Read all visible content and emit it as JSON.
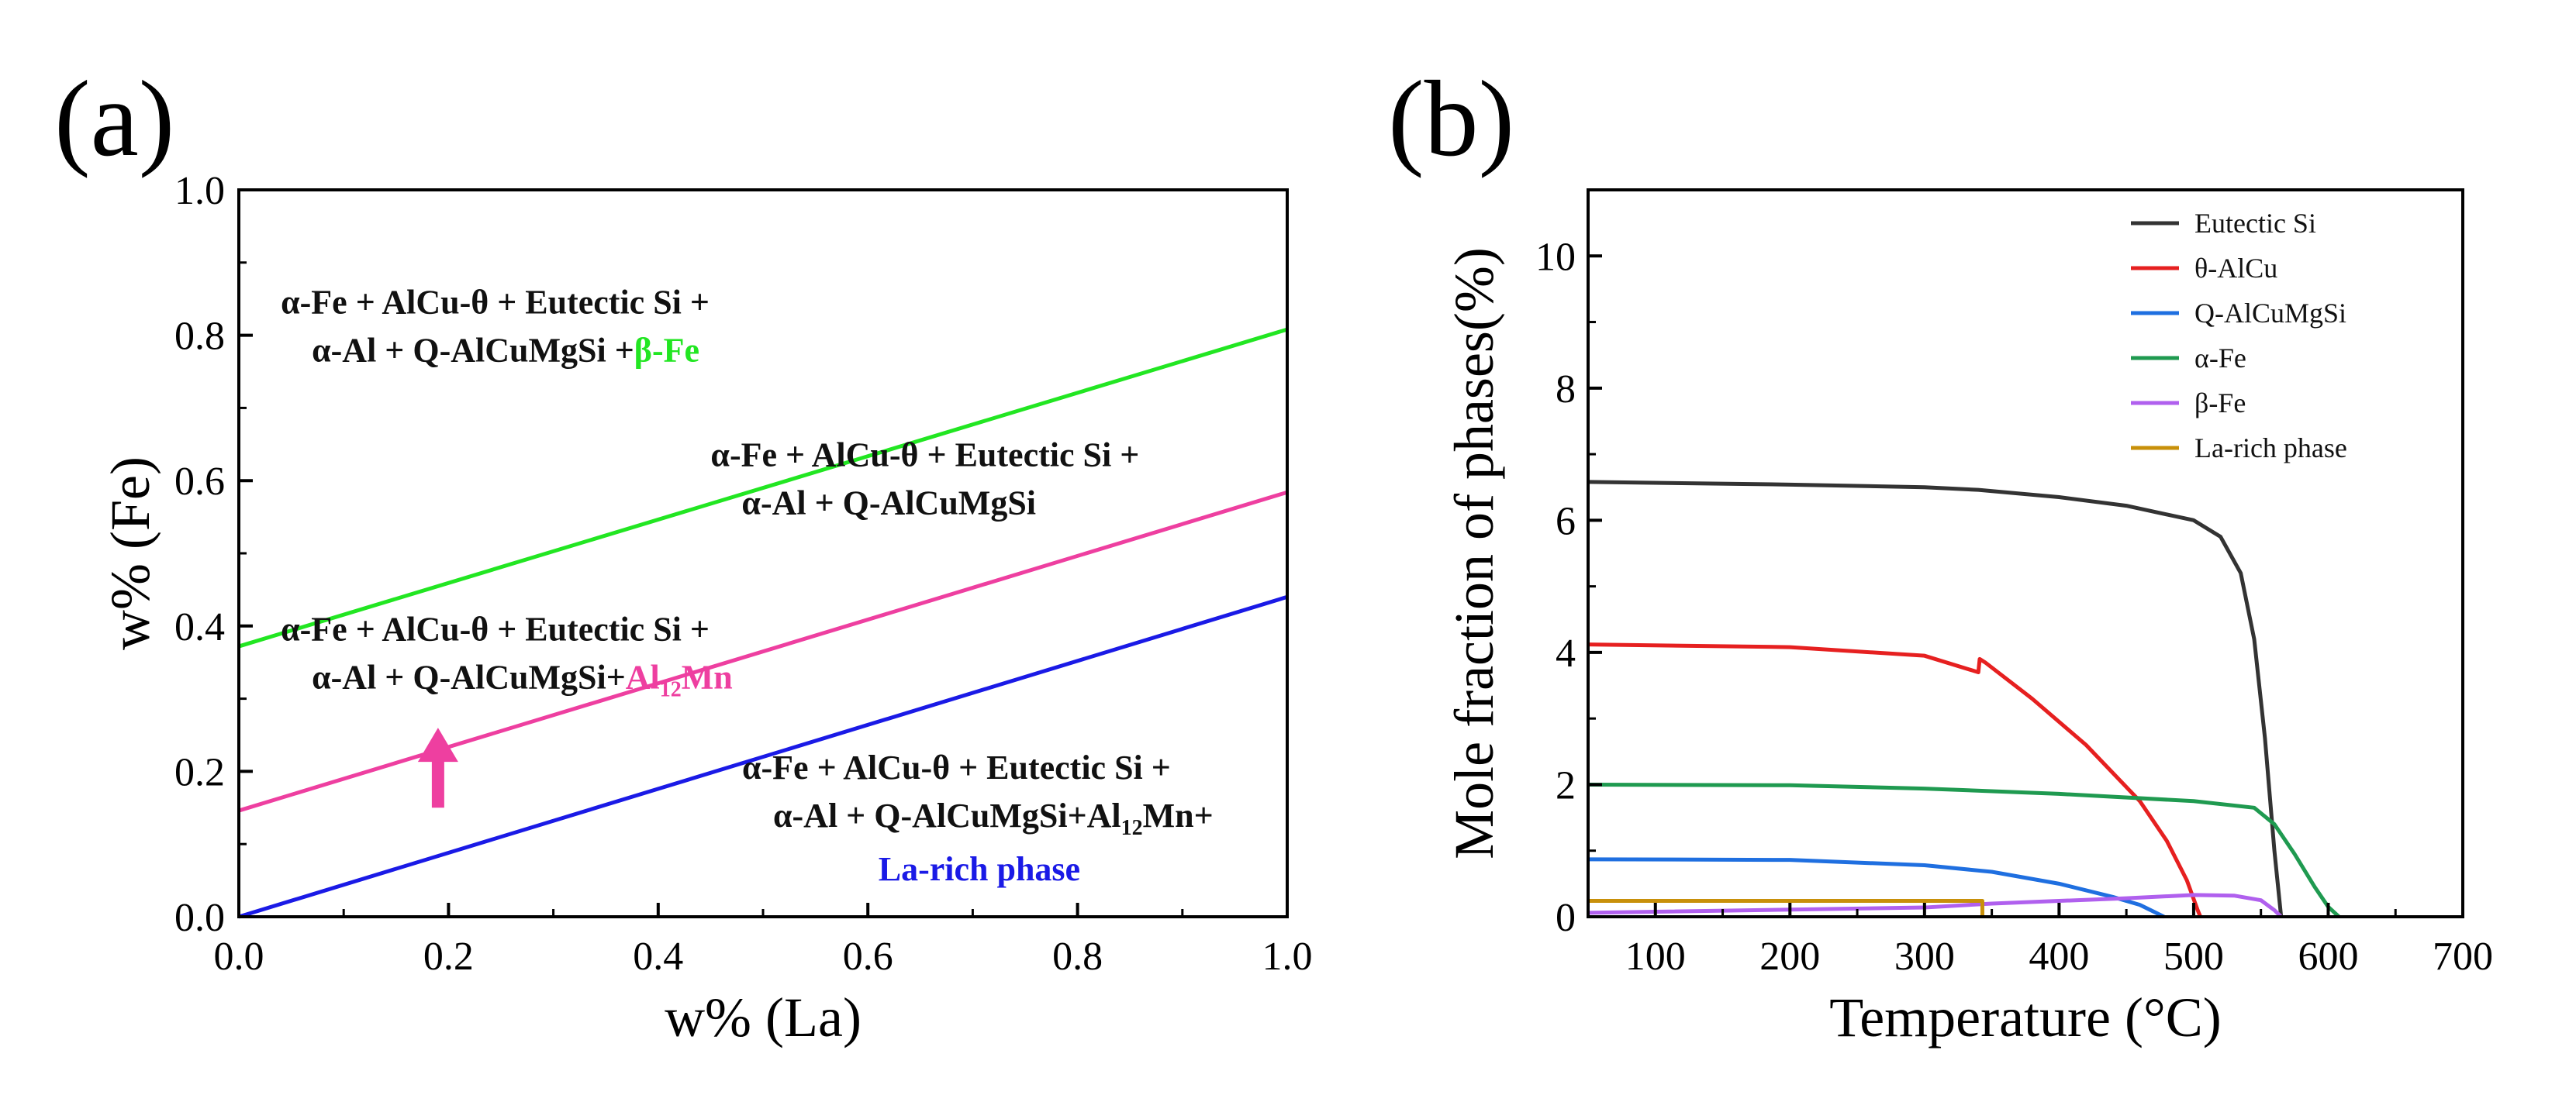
{
  "chart_data": [
    {
      "panel_label": "(a)",
      "type": "line",
      "xlabel": "w% (La)",
      "ylabel": "w% (Fe)",
      "xlim": [
        0,
        1.0
      ],
      "ylim": [
        0,
        1.0
      ],
      "x_ticks": [
        "0.0",
        "0.2",
        "0.4",
        "0.6",
        "0.8",
        "1.0"
      ],
      "y_ticks": [
        "0.0",
        "0.2",
        "0.4",
        "0.6",
        "0.8",
        "1.0"
      ],
      "grid": false,
      "series": [
        {
          "color": "#22e622",
          "x": [
            0,
            1.0
          ],
          "y": [
            0.372,
            0.808
          ]
        },
        {
          "color": "#ee3fa0",
          "x": [
            0,
            1.0
          ],
          "y": [
            0.146,
            0.584
          ]
        },
        {
          "color": "#1a1ae6",
          "x": [
            0,
            1.0
          ],
          "y": [
            0.0,
            0.44
          ]
        }
      ],
      "annotations": [
        {
          "lines": [
            "α-Fe + AlCu-θ + Eutectic Si +",
            "α-Al + Q-AlCuMgSi +"
          ],
          "highlight": "β-Fe",
          "highlight_color": "#22e622",
          "x": 0.04,
          "y": 0.83
        },
        {
          "lines": [
            "α-Fe + AlCu-θ + Eutectic Si +",
            "α-Al + Q-AlCuMgSi"
          ],
          "x": 0.45,
          "y": 0.62
        },
        {
          "lines": [
            "α-Fe + AlCu-θ + Eutectic Si +",
            "α-Al + Q-AlCuMgSi+"
          ],
          "highlight_base": "Al",
          "highlight_sub": "12",
          "highlight_tail": "Mn",
          "highlight_color": "#ee3fa0",
          "x": 0.04,
          "y": 0.38
        },
        {
          "lines": [
            "α-Fe + AlCu-θ + Eutectic Si +",
            "α-Al + Q-AlCuMgSi+Al",
            "12",
            "Mn+"
          ],
          "x": 0.48,
          "y": 0.19
        },
        {
          "text": "La-rich phase",
          "color": "#1a1ae6",
          "x": 0.61,
          "y": 0.05
        }
      ],
      "arrow": {
        "x": 0.19,
        "y_from": 0.15,
        "y_to": 0.26,
        "color": "#ee3fa0"
      }
    },
    {
      "panel_label": "(b)",
      "type": "line",
      "xlabel": "Temperature (°C)",
      "ylabel": "Mole fraction of phases(%)",
      "xlim": [
        50,
        700
      ],
      "ylim": [
        0,
        11
      ],
      "x_ticks": [
        100,
        200,
        300,
        400,
        500,
        600,
        700
      ],
      "y_ticks": [
        0,
        2,
        4,
        6,
        8,
        10
      ],
      "grid": false,
      "legend": "top-right",
      "series": [
        {
          "name": "Eutectic Si",
          "color": "#333333",
          "x": [
            50,
            200,
            300,
            340,
            400,
            450,
            500,
            520,
            535,
            545,
            553,
            560,
            565
          ],
          "y": [
            6.58,
            6.54,
            6.5,
            6.46,
            6.35,
            6.22,
            6.0,
            5.75,
            5.2,
            4.2,
            2.7,
            1.0,
            0.0
          ]
        },
        {
          "name": "θ-AlCu",
          "color": "#e62020",
          "x": [
            50,
            200,
            300,
            340,
            341,
            345,
            380,
            420,
            460,
            480,
            495,
            503,
            505
          ],
          "y": [
            4.12,
            4.08,
            3.95,
            3.7,
            3.9,
            3.85,
            3.3,
            2.6,
            1.75,
            1.15,
            0.55,
            0.1,
            0.0
          ]
        },
        {
          "name": "Q-AlCuMgSi",
          "color": "#1f6fe0",
          "x": [
            50,
            200,
            300,
            350,
            400,
            440,
            460,
            470,
            478
          ],
          "y": [
            0.87,
            0.86,
            0.78,
            0.68,
            0.5,
            0.3,
            0.18,
            0.08,
            0.0
          ]
        },
        {
          "name": "α-Fe",
          "color": "#1f9a50",
          "x": [
            50,
            200,
            300,
            400,
            500,
            545,
            560,
            575,
            590,
            600,
            608
          ],
          "y": [
            2.0,
            1.99,
            1.94,
            1.86,
            1.75,
            1.65,
            1.4,
            0.95,
            0.45,
            0.15,
            0.0
          ]
        },
        {
          "name": "β-Fe",
          "color": "#b060ee",
          "x": [
            50,
            300,
            350,
            400,
            450,
            500,
            530,
            550,
            560,
            565
          ],
          "y": [
            0.06,
            0.14,
            0.2,
            0.24,
            0.28,
            0.33,
            0.32,
            0.25,
            0.1,
            0.0
          ]
        },
        {
          "name": "La-rich phase",
          "color": "#c8900a",
          "x": [
            50,
            343,
            343
          ],
          "y": [
            0.24,
            0.24,
            0.0
          ]
        }
      ]
    }
  ]
}
